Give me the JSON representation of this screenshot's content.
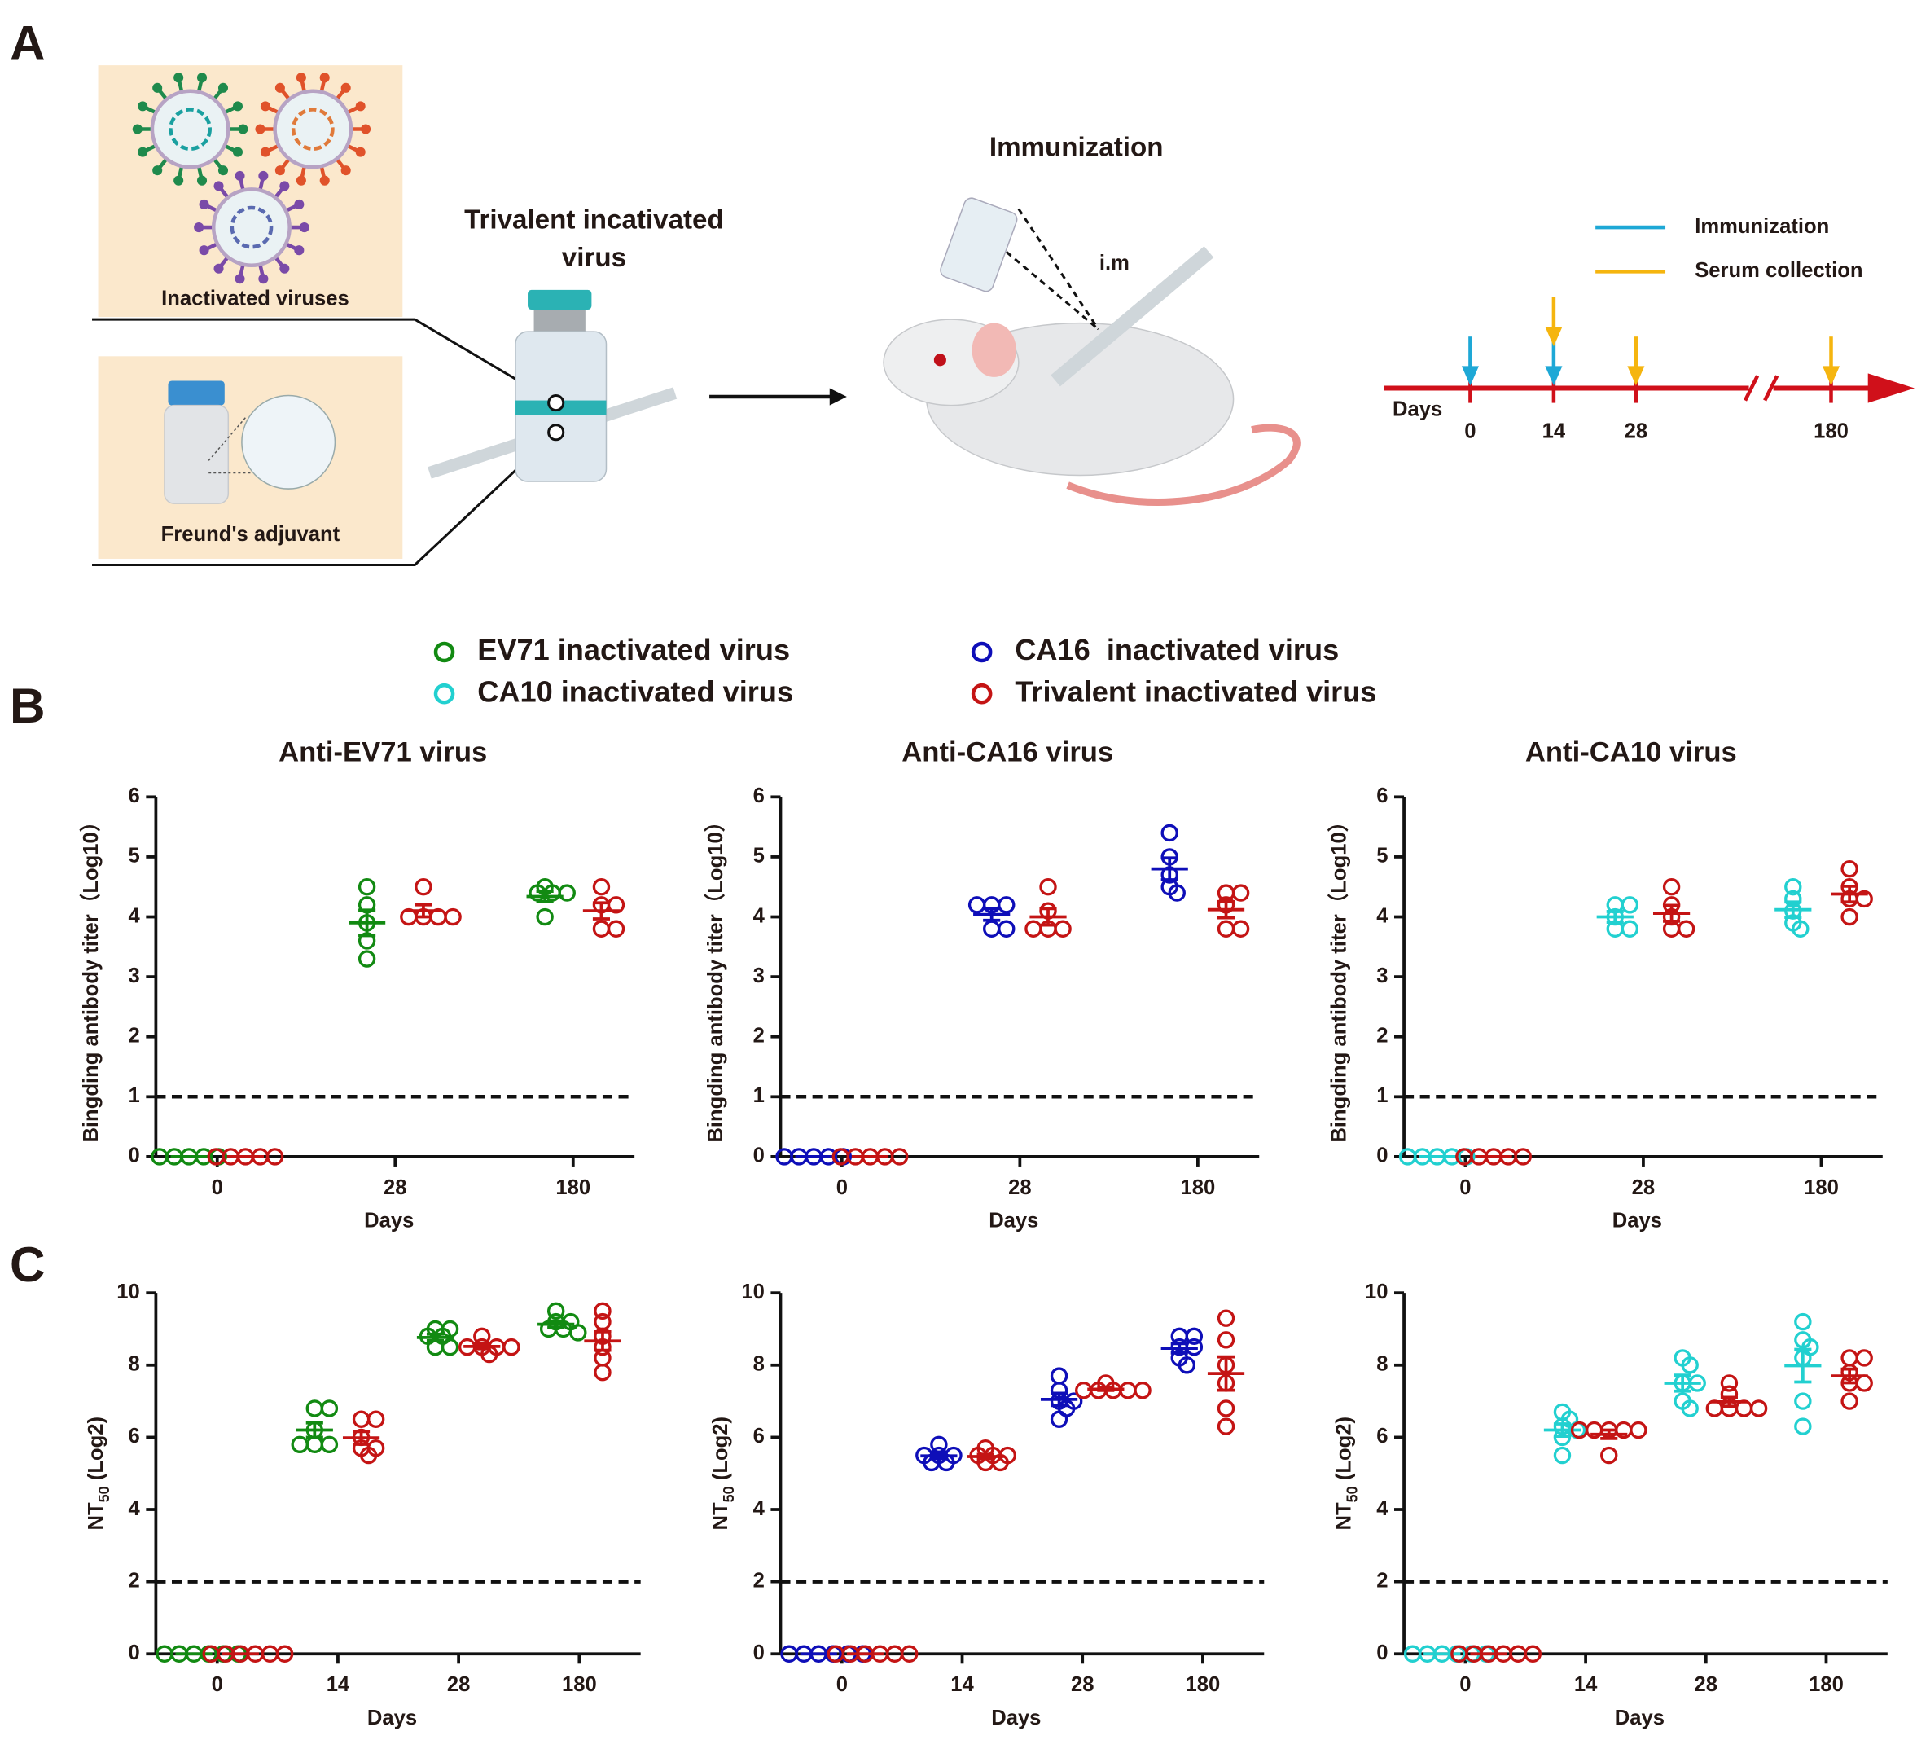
{
  "panel_labels": {
    "a": "A",
    "b": "B",
    "c": "C"
  },
  "diagram": {
    "box_viruses": "Inactivated viruses",
    "box_adjuvant": "Freund's adjuvant",
    "vaccine": [
      "Trivalent incativated",
      "virus"
    ],
    "immunization": "Immunization",
    "route": "i.m",
    "schedule_legend": [
      {
        "name": "Immunization",
        "color": "#1ea8d6"
      },
      {
        "name": "Serum collection",
        "color": "#f5b50f"
      }
    ],
    "schedule": {
      "label": "Days",
      "ticks": [
        0,
        14,
        28,
        180
      ],
      "immunization": [
        0,
        14
      ],
      "serum": [
        14,
        28,
        180
      ]
    }
  },
  "legend": [
    {
      "name": "EV71 inactivated virus",
      "color": "#128a12"
    },
    {
      "name": "CA10 inactivated virus",
      "color": "#22d0d0"
    },
    {
      "name": "CA16  inactivated virus",
      "color": "#0e0eb8"
    },
    {
      "name": "Trivalent inactivated virus",
      "color": "#c41414"
    }
  ],
  "chart_data": [
    {
      "type": "scatter",
      "title": "Anti-EV71 virus",
      "y_label": [
        "Bingding antibody titer（Log10）"
      ],
      "x_label": "Days",
      "categories": [
        "0",
        "28",
        "180"
      ],
      "ylim": [
        0,
        6
      ],
      "yticks": [
        0,
        1,
        2,
        3,
        4,
        5,
        6
      ],
      "threshold": 1,
      "series": [
        {
          "name": "EV71 inactivated virus",
          "color": "#128a12",
          "values": [
            [
              0,
              0,
              0,
              0,
              0
            ],
            [
              4.5,
              4.2,
              3.9,
              3.6,
              3.3
            ],
            [
              4.5,
              4.4,
              4.4,
              4.4,
              4.0
            ]
          ]
        },
        {
          "name": "Trivalent inactivated virus",
          "color": "#c41414",
          "values": [
            [
              0,
              0,
              0,
              0,
              0
            ],
            [
              4.5,
              4.0,
              4.0,
              4.0,
              4.0
            ],
            [
              4.5,
              4.2,
              4.2,
              3.8,
              3.8
            ]
          ]
        }
      ]
    },
    {
      "type": "scatter",
      "title": "Anti-CA16 virus",
      "y_label": [
        "Bingding antibody titer（Log10）"
      ],
      "x_label": "Days",
      "categories": [
        "0",
        "28",
        "180"
      ],
      "ylim": [
        0,
        6
      ],
      "yticks": [
        0,
        1,
        2,
        3,
        4,
        5,
        6
      ],
      "threshold": 1,
      "series": [
        {
          "name": "CA16  inactivated virus",
          "color": "#0e0eb8",
          "values": [
            [
              0,
              0,
              0,
              0,
              0
            ],
            [
              4.2,
              4.2,
              4.2,
              3.8,
              3.8
            ],
            [
              5.4,
              5.0,
              4.7,
              4.5,
              4.4
            ]
          ]
        },
        {
          "name": "Trivalent inactivated virus",
          "color": "#c41414",
          "values": [
            [
              0,
              0,
              0,
              0,
              0
            ],
            [
              4.5,
              4.1,
              3.8,
              3.8,
              3.8
            ],
            [
              4.4,
              4.4,
              4.2,
              3.8,
              3.8
            ]
          ]
        }
      ]
    },
    {
      "type": "scatter",
      "title": "Anti-CA10 virus",
      "y_label": [
        "Bingding antibody titer（Log10）"
      ],
      "x_label": "Days",
      "categories": [
        "0",
        "28",
        "180"
      ],
      "ylim": [
        0,
        6
      ],
      "yticks": [
        0,
        1,
        2,
        3,
        4,
        5,
        6
      ],
      "threshold": 1,
      "series": [
        {
          "name": "CA10 inactivated virus",
          "color": "#22d0d0",
          "values": [
            [
              0,
              0,
              0,
              0,
              0
            ],
            [
              4.2,
              4.2,
              4.0,
              3.8,
              3.8
            ],
            [
              4.5,
              4.3,
              4.1,
              3.9,
              3.8
            ]
          ]
        },
        {
          "name": "Trivalent inactivated virus",
          "color": "#c41414",
          "values": [
            [
              0,
              0,
              0,
              0,
              0
            ],
            [
              4.5,
              4.2,
              4.0,
              3.8,
              3.8
            ],
            [
              4.8,
              4.5,
              4.3,
              4.3,
              4.0
            ]
          ]
        }
      ]
    },
    {
      "type": "scatter",
      "y_label": [
        "NT",
        "50",
        " (Log2)"
      ],
      "x_label": "Days",
      "categories": [
        "0",
        "14",
        "28",
        "180"
      ],
      "ylim": [
        0,
        10
      ],
      "yticks": [
        0,
        2,
        4,
        6,
        8,
        10
      ],
      "threshold": 2,
      "series": [
        {
          "name": "EV71 inactivated virus",
          "color": "#128a12",
          "values": [
            [
              0,
              0,
              0,
              0,
              0,
              0
            ],
            [
              6.8,
              6.8,
              6.2,
              5.8,
              5.8,
              5.8
            ],
            [
              9.0,
              9.0,
              8.8,
              8.8,
              8.5,
              8.5
            ],
            [
              9.5,
              9.2,
              9.2,
              9.0,
              9.0,
              8.9
            ]
          ]
        },
        {
          "name": "Trivalent inactivated virus",
          "color": "#c41414",
          "values": [
            [
              0,
              0,
              0,
              0,
              0,
              0
            ],
            [
              6.5,
              6.5,
              6.0,
              5.7,
              5.7,
              5.5
            ],
            [
              8.8,
              8.5,
              8.5,
              8.5,
              8.5,
              8.3
            ],
            [
              9.5,
              9.2,
              8.8,
              8.5,
              8.2,
              7.8
            ]
          ]
        }
      ]
    },
    {
      "type": "scatter",
      "y_label": [
        "NT",
        "50",
        " (Log2)"
      ],
      "x_label": "Days",
      "categories": [
        "0",
        "14",
        "28",
        "180"
      ],
      "ylim": [
        0,
        10
      ],
      "yticks": [
        0,
        2,
        4,
        6,
        8,
        10
      ],
      "threshold": 2,
      "series": [
        {
          "name": "CA16  inactivated virus",
          "color": "#0e0eb8",
          "values": [
            [
              0,
              0,
              0,
              0,
              0,
              0
            ],
            [
              5.8,
              5.5,
              5.5,
              5.5,
              5.3,
              5.3
            ],
            [
              7.7,
              7.3,
              7.0,
              7.0,
              6.8,
              6.5
            ],
            [
              8.8,
              8.8,
              8.5,
              8.5,
              8.2,
              8.0
            ]
          ]
        },
        {
          "name": "Trivalent inactivated virus",
          "color": "#c41414",
          "values": [
            [
              0,
              0,
              0,
              0,
              0,
              0
            ],
            [
              5.7,
              5.5,
              5.5,
              5.5,
              5.3,
              5.3
            ],
            [
              7.5,
              7.3,
              7.3,
              7.3,
              7.3,
              7.3
            ],
            [
              9.3,
              8.7,
              8.0,
              7.5,
              6.8,
              6.3
            ]
          ]
        }
      ]
    },
    {
      "type": "scatter",
      "y_label": [
        "NT",
        "50",
        " (Log2)"
      ],
      "x_label": "Days",
      "categories": [
        "0",
        "14",
        "28",
        "180"
      ],
      "ylim": [
        0,
        10
      ],
      "yticks": [
        0,
        2,
        4,
        6,
        8,
        10
      ],
      "threshold": 2,
      "series": [
        {
          "name": "CA10 inactivated virus",
          "color": "#22d0d0",
          "values": [
            [
              0,
              0,
              0,
              0,
              0,
              0
            ],
            [
              6.7,
              6.5,
              6.3,
              6.2,
              6.0,
              5.5
            ],
            [
              8.2,
              8.0,
              7.5,
              7.5,
              7.0,
              6.8
            ],
            [
              9.2,
              8.7,
              8.5,
              8.2,
              7.0,
              6.3
            ]
          ]
        },
        {
          "name": "Trivalent inactivated virus",
          "color": "#c41414",
          "values": [
            [
              0,
              0,
              0,
              0,
              0,
              0
            ],
            [
              6.2,
              6.2,
              6.2,
              6.2,
              6.2,
              5.5
            ],
            [
              7.5,
              7.2,
              6.8,
              6.8,
              6.8,
              6.8
            ],
            [
              8.2,
              8.2,
              7.8,
              7.5,
              7.5,
              7.0
            ]
          ]
        }
      ]
    }
  ]
}
